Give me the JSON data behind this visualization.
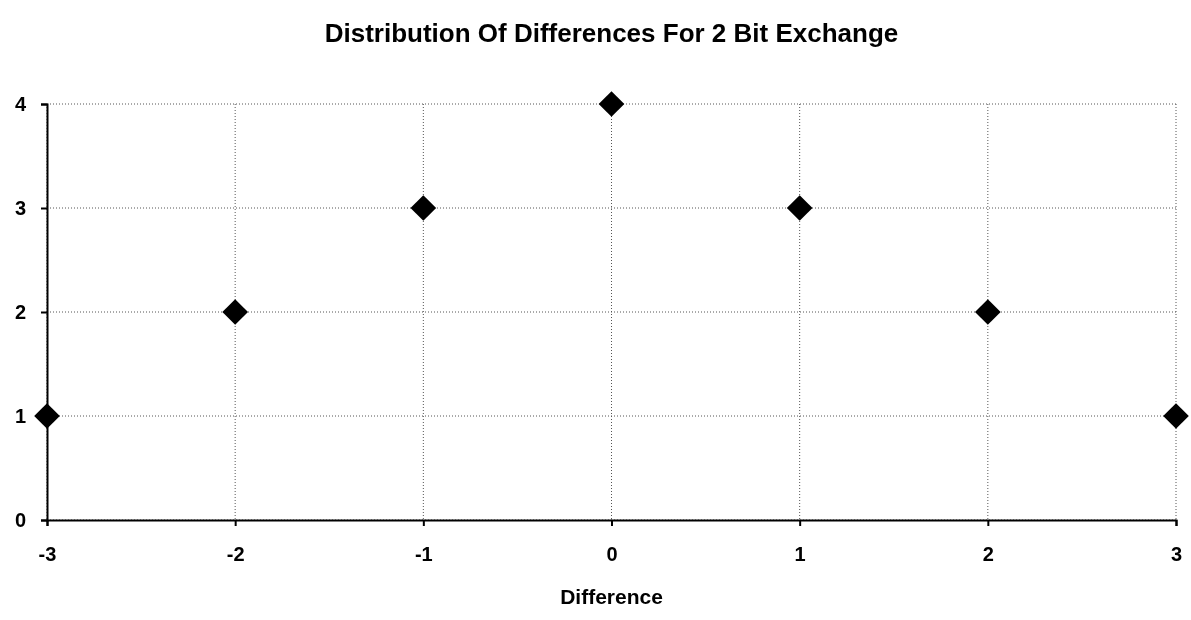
{
  "chart_data": {
    "type": "scatter",
    "title": "Distribution Of Differences For 2 Bit Exchange",
    "xlabel": "Difference",
    "x": [
      -3,
      -2,
      -1,
      0,
      1,
      2,
      3
    ],
    "series": [
      {
        "color": "#000000",
        "values": [
          1,
          2,
          3,
          4,
          3,
          2,
          1
        ]
      }
    ],
    "xlim": [
      -3,
      3
    ],
    "xticks": [
      -3,
      -2,
      -1,
      0,
      1,
      2,
      3
    ],
    "ylim": [
      0,
      4
    ],
    "yticks": [
      0,
      1,
      2,
      3,
      4
    ],
    "grid": true,
    "marker": "diamond"
  }
}
